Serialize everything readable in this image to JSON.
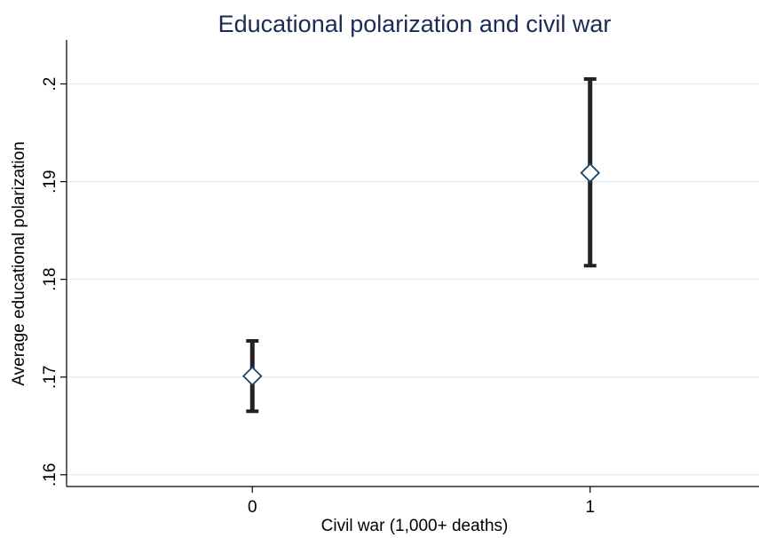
{
  "chart_data": {
    "type": "scatter",
    "title": "Educational polarization and civil war",
    "xlabel": "Civil war (1,000+ deaths)",
    "ylabel": "Average educational polarization",
    "categories": [
      "0",
      "1"
    ],
    "x": [
      0,
      1
    ],
    "mean": [
      0.1701,
      0.1909
    ],
    "ci_lower": [
      0.1665,
      0.1814
    ],
    "ci_upper": [
      0.1737,
      0.2005
    ],
    "xlim": [
      -0.55,
      1.5
    ],
    "ylim": [
      0.1588,
      0.2045
    ],
    "yticks": [
      0.16,
      0.17,
      0.18,
      0.19,
      0.2
    ],
    "ytick_labels": [
      ".16",
      ".17",
      ".18",
      ".19",
      ".2"
    ],
    "grid": true,
    "colors": {
      "title": "#1a2b56",
      "marker_edge": "#1a476f",
      "error_bar": "#222222",
      "grid": "#e4edf1"
    }
  }
}
